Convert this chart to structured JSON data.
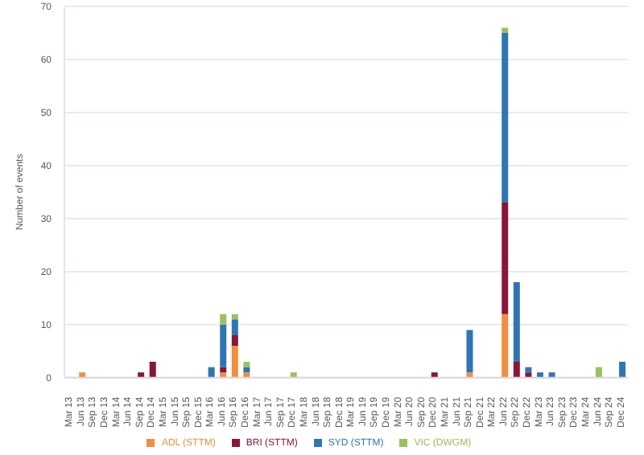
{
  "chart_data": {
    "type": "bar",
    "stacked": true,
    "ylabel": "Number of events",
    "categories": [
      "Mar 13",
      "Jun 13",
      "Sep 13",
      "Dec 13",
      "Mar 14",
      "Jun 14",
      "Sep 14",
      "Dec 14",
      "Mar 15",
      "Jun 15",
      "Sep 15",
      "Dec 15",
      "Mar 16",
      "Jun 16",
      "Sep 16",
      "Dec 16",
      "Mar 17",
      "Jun 17",
      "Sep 17",
      "Dec 17",
      "Mar 18",
      "Jun 18",
      "Sep 18",
      "Dec 18",
      "Mar 19",
      "Jun 19",
      "Sep 19",
      "Dec 19",
      "Mar 20",
      "Jun 20",
      "Sep 20",
      "Dec 20",
      "Mar 21",
      "Jun 21",
      "Sep 21",
      "Dec 21",
      "Mar 22",
      "Jun 22",
      "Sep 22",
      "Dec 22",
      "Mar 23",
      "Jun 23",
      "Sep 23",
      "Dec 23",
      "Mar 24",
      "Jun 24",
      "Sep 24",
      "Dec 24"
    ],
    "series": [
      {
        "name": "ADL (STTM)",
        "color": "#f28e3c",
        "values": [
          0,
          1,
          0,
          0,
          0,
          0,
          0,
          0,
          0,
          0,
          0,
          0,
          0,
          1,
          6,
          1,
          0,
          0,
          0,
          0,
          0,
          0,
          0,
          0,
          0,
          0,
          0,
          0,
          0,
          0,
          0,
          0,
          0,
          0,
          1,
          0,
          0,
          12,
          0,
          0,
          0,
          0,
          0,
          0,
          0,
          0,
          0,
          0
        ]
      },
      {
        "name": "BRI (STTM)",
        "color": "#8b1538",
        "values": [
          0,
          0,
          0,
          0,
          0,
          0,
          1,
          3,
          0,
          0,
          0,
          0,
          0,
          1,
          2,
          0,
          0,
          0,
          0,
          0,
          0,
          0,
          0,
          0,
          0,
          0,
          0,
          0,
          0,
          0,
          0,
          1,
          0,
          0,
          0,
          0,
          0,
          21,
          3,
          1,
          0,
          0,
          0,
          0,
          0,
          0,
          0,
          0
        ]
      },
      {
        "name": "SYD (STTM)",
        "color": "#2e75b6",
        "values": [
          0,
          0,
          0,
          0,
          0,
          0,
          0,
          0,
          0,
          0,
          0,
          0,
          2,
          8,
          3,
          1,
          0,
          0,
          0,
          0,
          0,
          0,
          0,
          0,
          0,
          0,
          0,
          0,
          0,
          0,
          0,
          0,
          0,
          0,
          8,
          0,
          0,
          32,
          15,
          1,
          1,
          1,
          0,
          0,
          0,
          0,
          0,
          3
        ]
      },
      {
        "name": "VIC (DWGM)",
        "color": "#9bc15a",
        "values": [
          0,
          0,
          0,
          0,
          0,
          0,
          0,
          0,
          0,
          0,
          0,
          0,
          0,
          2,
          1,
          1,
          0,
          0,
          0,
          1,
          0,
          0,
          0,
          0,
          0,
          0,
          0,
          0,
          0,
          0,
          0,
          0,
          0,
          0,
          0,
          0,
          0,
          1,
          0,
          0,
          0,
          0,
          0,
          0,
          0,
          2,
          0,
          0
        ]
      }
    ],
    "ylim": [
      0,
      70
    ],
    "yticks": [
      0,
      10,
      20,
      30,
      40,
      50,
      60,
      70
    ],
    "grid": "y",
    "legend": "bottom"
  }
}
